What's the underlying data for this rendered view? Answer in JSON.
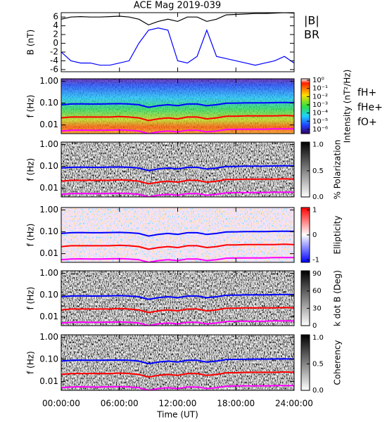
{
  "title": "ACE Mag 2019-039",
  "chart_data": [
    {
      "type": "line",
      "ylabel": "B (nT)",
      "ylim": [
        -6.5,
        7
      ],
      "yticks": [
        -6,
        -4,
        -2,
        0,
        2,
        4,
        6
      ],
      "x": [
        0,
        1,
        2,
        3,
        4,
        5,
        6,
        7,
        8,
        9,
        10,
        11,
        12,
        13,
        14,
        15,
        16,
        17,
        18,
        19,
        20,
        21,
        22,
        23,
        24
      ],
      "series": [
        {
          "name": "|B|",
          "color": "#000000",
          "values": [
            5.5,
            6.0,
            6.1,
            6.0,
            6.0,
            6.1,
            6.2,
            6.0,
            5.5,
            4.2,
            5.0,
            5.5,
            5.0,
            6.0,
            6.0,
            5.0,
            5.5,
            6.5,
            6.6,
            6.7,
            6.8,
            6.8,
            6.9,
            7.0,
            6.9
          ]
        },
        {
          "name": "BR",
          "color": "#0000ff",
          "values": [
            -2,
            -4,
            -4.5,
            -4.5,
            -5,
            -5,
            -4.5,
            -4,
            0,
            3,
            3.5,
            3,
            -4,
            -4.5,
            -3,
            3,
            -3,
            -3.5,
            -4,
            -4.5,
            -5,
            -4.5,
            -4,
            -3,
            -4.5
          ]
        }
      ]
    },
    {
      "type": "spectrogram",
      "colormap": "rainbow",
      "ylabel": "f (Hz)",
      "ylog": true,
      "ylim": [
        0.004,
        1.3
      ],
      "yticks": [
        {
          "value": 1,
          "label": "1.00"
        },
        {
          "value": 0.1,
          "label": "0.10"
        },
        {
          "value": 0.01,
          "label": "0.01"
        }
      ],
      "colorbar": {
        "label": "Intensity (nT²/Hz)",
        "log": true,
        "lim": [
          3e-07,
          1.5
        ],
        "ticks": [
          {
            "value": 1,
            "label": "10⁰"
          },
          {
            "value": 0.1,
            "label": "10⁻¹"
          },
          {
            "value": 0.01,
            "label": "10⁻²"
          },
          {
            "value": 0.001,
            "label": "10⁻³"
          },
          {
            "value": 0.0001,
            "label": "10⁻⁴"
          },
          {
            "value": 1e-05,
            "label": "10⁻⁵"
          },
          {
            "value": 1e-06,
            "label": "10⁻⁶"
          }
        ]
      },
      "x": [
        0,
        1,
        2,
        3,
        4,
        5,
        6,
        7,
        8,
        9,
        10,
        11,
        12,
        13,
        14,
        15,
        16,
        17,
        18,
        19,
        20,
        21,
        22,
        23,
        24
      ],
      "series": [
        {
          "name": "fH+",
          "color": "#0000ff",
          "values": [
            0.084,
            0.091,
            0.093,
            0.091,
            0.091,
            0.093,
            0.094,
            0.091,
            0.084,
            0.064,
            0.076,
            0.084,
            0.076,
            0.091,
            0.091,
            0.076,
            0.084,
            0.099,
            0.1,
            0.102,
            0.103,
            0.103,
            0.105,
            0.106,
            0.105
          ]
        },
        {
          "name": "fHe+",
          "color": "#ff0000",
          "values": [
            0.021,
            0.023,
            0.023,
            0.023,
            0.023,
            0.023,
            0.024,
            0.023,
            0.021,
            0.016,
            0.019,
            0.021,
            0.019,
            0.023,
            0.023,
            0.019,
            0.021,
            0.025,
            0.025,
            0.026,
            0.026,
            0.026,
            0.026,
            0.027,
            0.026
          ]
        },
        {
          "name": "fO+",
          "color": "#ff00ff",
          "values": [
            0.0053,
            0.0057,
            0.0058,
            0.0057,
            0.0057,
            0.0058,
            0.0059,
            0.0057,
            0.0053,
            0.004,
            0.0048,
            0.0053,
            0.0048,
            0.0057,
            0.0057,
            0.0048,
            0.0053,
            0.0062,
            0.0063,
            0.0064,
            0.0064,
            0.0064,
            0.0066,
            0.0066,
            0.0066
          ]
        }
      ]
    },
    {
      "type": "spectrogram",
      "colormap": "gray",
      "ylabel": "f (Hz)",
      "ylog": true,
      "ylim": [
        0.004,
        1.3
      ],
      "yticks": [
        {
          "value": 1,
          "label": "1.00"
        },
        {
          "value": 0.1,
          "label": "0.10"
        },
        {
          "value": 0.01,
          "label": "0.01"
        }
      ],
      "colorbar": {
        "label": "% Polarization",
        "lim": [
          0,
          1.05
        ],
        "ticks": [
          {
            "value": 1,
            "label": "1.0"
          },
          0.5,
          {
            "value": 0,
            "label": "0.0"
          }
        ]
      }
    },
    {
      "type": "spectrogram",
      "colormap": "bwr",
      "ylabel": "f (Hz)",
      "ylog": true,
      "ylim": [
        0.004,
        1.3
      ],
      "yticks": [
        {
          "value": 1,
          "label": "1.00"
        },
        {
          "value": 0.1,
          "label": "0.10"
        },
        {
          "value": 0.01,
          "label": "0.01"
        }
      ],
      "colorbar": {
        "label": "Ellipticity",
        "lim": [
          -1.1,
          1.1
        ],
        "ticks": [
          1,
          0,
          -1
        ]
      }
    },
    {
      "type": "spectrogram",
      "colormap": "gray",
      "ylabel": "f (Hz)",
      "ylog": true,
      "ylim": [
        0.004,
        1.3
      ],
      "yticks": [
        {
          "value": 1,
          "label": "1.00"
        },
        {
          "value": 0.1,
          "label": "0.10"
        },
        {
          "value": 0.01,
          "label": "0.01"
        }
      ],
      "colorbar": {
        "label": "k dot B (Deg)",
        "lim": [
          0,
          95
        ],
        "ticks": [
          90,
          60,
          30,
          0
        ]
      }
    },
    {
      "type": "spectrogram",
      "colormap": "gray",
      "ylabel": "f (Hz)",
      "ylog": true,
      "ylim": [
        0.004,
        1.3
      ],
      "yticks": [
        {
          "value": 1,
          "label": "1.00"
        },
        {
          "value": 0.1,
          "label": "0.10"
        },
        {
          "value": 0.01,
          "label": "0.01"
        }
      ],
      "colorbar": {
        "label": "Coherency",
        "lim": [
          0,
          1.05
        ],
        "ticks": [
          {
            "value": 1,
            "label": "1.0"
          },
          0.5,
          {
            "value": 0,
            "label": "0.0"
          }
        ]
      },
      "xlabel": "Time (UT)",
      "xlim": [
        0,
        24
      ],
      "xticks": [
        {
          "value": 0,
          "label": "00:00:00"
        },
        {
          "value": 6,
          "label": "06:00:00"
        },
        {
          "value": 12,
          "label": "12:00:00"
        },
        {
          "value": 18,
          "label": "18:00:00"
        },
        {
          "value": 24,
          "label": "24:00:00"
        }
      ]
    }
  ]
}
